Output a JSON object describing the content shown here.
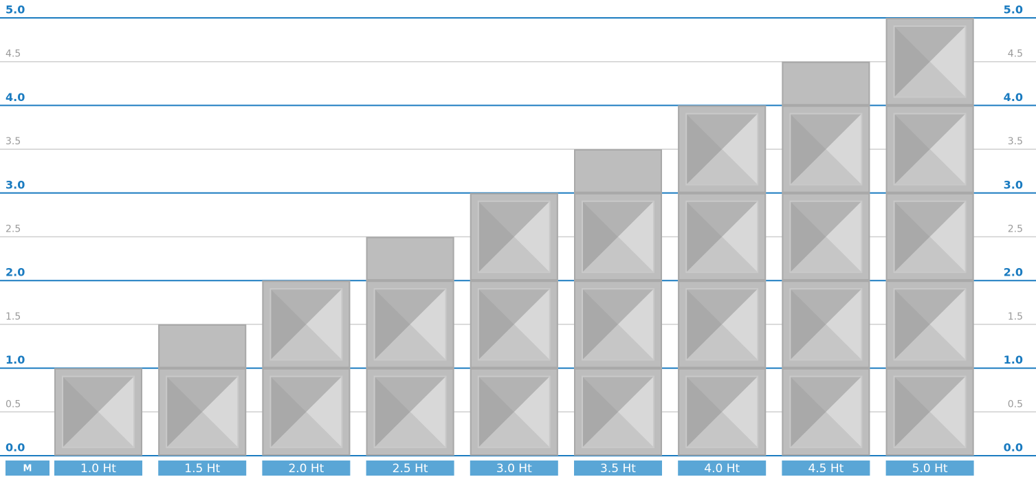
{
  "chart_data": {
    "type": "bar",
    "y_unit": "M",
    "categories": [
      "1.0 Ht",
      "1.5 Ht",
      "2.0 Ht",
      "2.5 Ht",
      "3.0 Ht",
      "3.5 Ht",
      "4.0 Ht",
      "4.5 Ht",
      "5.0 Ht"
    ],
    "values": [
      1.0,
      1.5,
      2.0,
      2.5,
      3.0,
      3.5,
      4.0,
      4.5,
      5.0
    ],
    "color": "#bdbdbd",
    "ylim": [
      0,
      5
    ],
    "yticks": [
      {
        "value": 0,
        "label": "0.0"
      },
      0.5,
      {
        "value": 1,
        "label": "1.0"
      },
      1.5,
      {
        "value": 2,
        "label": "2.0"
      },
      2.5,
      {
        "value": 3,
        "label": "3.0"
      },
      3.5,
      {
        "value": 4,
        "label": "4.0"
      },
      4.5,
      {
        "value": 5,
        "label": "5.0"
      }
    ],
    "grid": true
  }
}
